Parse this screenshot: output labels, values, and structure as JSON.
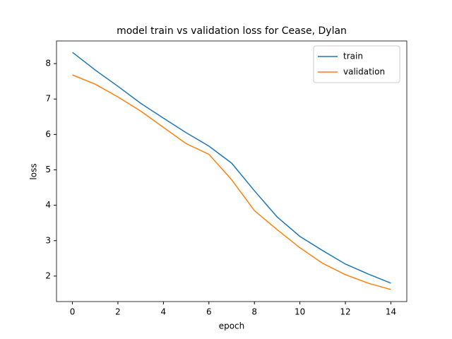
{
  "chart_data": {
    "type": "line",
    "title": "model train vs validation loss for Cease, Dylan",
    "x_label": "epoch",
    "y_label": "loss",
    "x": [
      0,
      1,
      2,
      3,
      4,
      5,
      6,
      7,
      8,
      9,
      10,
      11,
      12,
      13,
      14
    ],
    "series": [
      {
        "name": "train",
        "color": "#1f77b4",
        "values": [
          8.32,
          7.82,
          7.36,
          6.88,
          6.46,
          6.05,
          5.67,
          5.19,
          4.41,
          3.67,
          3.12,
          2.72,
          2.34,
          2.06,
          1.8
        ]
      },
      {
        "name": "validation",
        "color": "#ff7f0e",
        "values": [
          7.68,
          7.42,
          7.06,
          6.66,
          6.2,
          5.74,
          5.44,
          4.72,
          3.85,
          3.31,
          2.8,
          2.36,
          2.04,
          1.8,
          1.62
        ]
      }
    ],
    "xlim": [
      -0.7,
      14.7
    ],
    "ylim": [
      1.28,
      8.64
    ],
    "xticks": [
      0,
      2,
      4,
      6,
      8,
      10,
      12,
      14
    ],
    "yticks": [
      2,
      3,
      4,
      5,
      6,
      7,
      8
    ],
    "legend": "upper right"
  }
}
